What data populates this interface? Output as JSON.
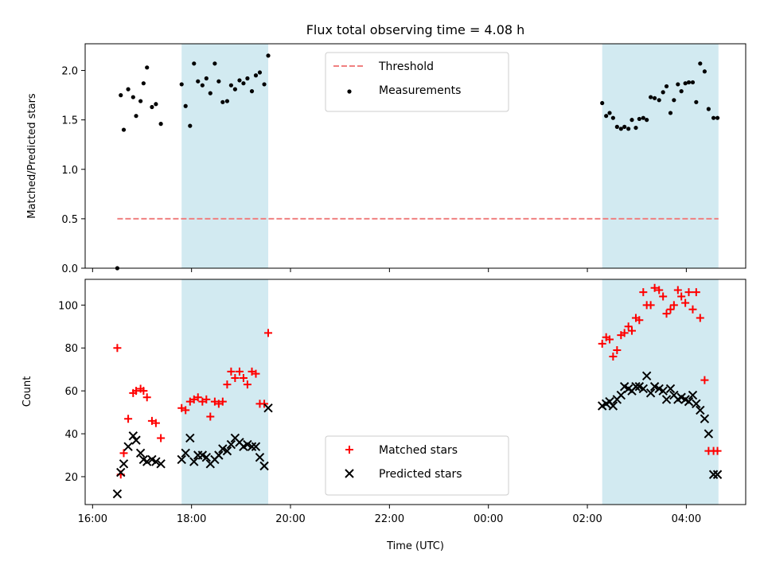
{
  "chart_data": [
    {
      "type": "scatter",
      "title": "Flux total observing time = 4.08 h",
      "xlabel": "",
      "ylabel": "Matched/Predicted stars",
      "x_unit": "hours_since_16:00_UTC",
      "xlim": [
        -0.15,
        13.2
      ],
      "ylim": [
        0,
        2.27
      ],
      "yticks": [
        0.0,
        0.5,
        1.0,
        1.5,
        2.0
      ],
      "ytick_labels": [
        "0.0",
        "0.5",
        "1.0",
        "1.5",
        "2.0"
      ],
      "shaded_intervals": [
        [
          1.8,
          3.55
        ],
        [
          10.3,
          12.65
        ]
      ],
      "shade_color": "#add8e6",
      "legend_position": "upper center",
      "threshold": {
        "name": "Threshold",
        "value": 0.5,
        "x_range": [
          0.5,
          12.65
        ],
        "color": "#f08080"
      },
      "series": [
        {
          "name": "Measurements",
          "color": "#000000",
          "x": [
            0.5,
            0.57,
            0.63,
            0.72,
            0.82,
            0.88,
            0.97,
            1.03,
            1.1,
            1.2,
            1.28,
            1.38,
            1.8,
            1.88,
            1.97,
            2.05,
            2.13,
            2.22,
            2.3,
            2.38,
            2.47,
            2.55,
            2.63,
            2.72,
            2.8,
            2.88,
            2.97,
            3.05,
            3.13,
            3.22,
            3.3,
            3.38,
            3.47,
            3.55,
            10.3,
            10.38,
            10.45,
            10.52,
            10.6,
            10.68,
            10.75,
            10.83,
            10.9,
            10.98,
            11.05,
            11.13,
            11.2,
            11.28,
            11.36,
            11.45,
            11.53,
            11.6,
            11.68,
            11.75,
            11.83,
            11.9,
            11.98,
            12.05,
            12.13,
            12.2,
            12.28,
            12.37,
            12.45,
            12.55,
            12.63
          ],
          "y": [
            0.0,
            1.75,
            1.4,
            1.81,
            1.73,
            1.54,
            1.69,
            1.87,
            2.03,
            1.63,
            1.66,
            1.46,
            1.86,
            1.64,
            1.44,
            2.07,
            1.89,
            1.85,
            1.92,
            1.77,
            2.07,
            1.89,
            1.68,
            1.69,
            1.85,
            1.81,
            1.9,
            1.87,
            1.92,
            1.79,
            1.95,
            1.98,
            1.86,
            2.15,
            1.67,
            1.54,
            1.57,
            1.52,
            1.43,
            1.41,
            1.43,
            1.41,
            1.5,
            1.42,
            1.51,
            1.52,
            1.5,
            1.73,
            1.72,
            1.7,
            1.78,
            1.84,
            1.57,
            1.7,
            1.86,
            1.79,
            1.87,
            1.88,
            1.88,
            1.68,
            2.07,
            1.99,
            1.61,
            1.52,
            1.52
          ]
        }
      ]
    },
    {
      "type": "scatter",
      "title": "",
      "xlabel": "Time (UTC)",
      "ylabel": "Count",
      "x_unit": "hours_since_16:00_UTC",
      "xlim": [
        -0.15,
        13.2
      ],
      "ylim": [
        7,
        112
      ],
      "yticks": [
        20,
        40,
        60,
        80,
        100
      ],
      "ytick_labels": [
        "20",
        "40",
        "60",
        "80",
        "100"
      ],
      "xticks": [
        0,
        2,
        4,
        6,
        8,
        10,
        12
      ],
      "xtick_labels": [
        "16:00",
        "18:00",
        "20:00",
        "22:00",
        "00:00",
        "02:00",
        "04:00"
      ],
      "shaded_intervals": [
        [
          1.8,
          3.55
        ],
        [
          10.3,
          12.65
        ]
      ],
      "shade_color": "#add8e6",
      "legend_position": "lower center",
      "series": [
        {
          "name": "Matched stars",
          "marker": "+",
          "color": "#ff0000",
          "x": [
            0.5,
            0.57,
            0.63,
            0.72,
            0.82,
            0.88,
            0.97,
            1.03,
            1.1,
            1.2,
            1.28,
            1.38,
            1.8,
            1.88,
            1.97,
            2.05,
            2.13,
            2.22,
            2.3,
            2.38,
            2.47,
            2.55,
            2.63,
            2.72,
            2.8,
            2.88,
            2.97,
            3.05,
            3.13,
            3.22,
            3.3,
            3.38,
            3.47,
            3.55,
            10.3,
            10.38,
            10.45,
            10.52,
            10.6,
            10.68,
            10.75,
            10.83,
            10.9,
            10.98,
            11.05,
            11.13,
            11.2,
            11.28,
            11.36,
            11.45,
            11.53,
            11.6,
            11.68,
            11.75,
            11.83,
            11.9,
            11.98,
            12.05,
            12.13,
            12.2,
            12.28,
            12.37,
            12.45,
            12.55,
            12.63
          ],
          "y": [
            80,
            21,
            31,
            47,
            59,
            60,
            61,
            60,
            57,
            46,
            45,
            38,
            52,
            51,
            55,
            56,
            57,
            55,
            56,
            48,
            55,
            54,
            55,
            63,
            69,
            66,
            69,
            66,
            63,
            69,
            68,
            54,
            54,
            87,
            82,
            85,
            84,
            76,
            79,
            86,
            87,
            90,
            88,
            94,
            93,
            106,
            100,
            100,
            108,
            107,
            104,
            96,
            98,
            100,
            107,
            104,
            101,
            106,
            98,
            106,
            94,
            65,
            32,
            32,
            32
          ],
          "y_note": ""
        },
        {
          "name": "Predicted stars",
          "marker": "x",
          "color": "#000000",
          "x": [
            0.5,
            0.57,
            0.63,
            0.72,
            0.82,
            0.88,
            0.97,
            1.03,
            1.1,
            1.2,
            1.28,
            1.38,
            1.8,
            1.88,
            1.97,
            2.05,
            2.13,
            2.22,
            2.3,
            2.38,
            2.47,
            2.55,
            2.63,
            2.72,
            2.8,
            2.88,
            2.97,
            3.05,
            3.13,
            3.22,
            3.3,
            3.38,
            3.47,
            3.55,
            10.3,
            10.38,
            10.45,
            10.52,
            10.6,
            10.68,
            10.75,
            10.83,
            10.9,
            10.98,
            11.05,
            11.13,
            11.2,
            11.28,
            11.36,
            11.45,
            11.53,
            11.6,
            11.68,
            11.75,
            11.83,
            11.9,
            11.98,
            12.05,
            12.13,
            12.2,
            12.28,
            12.37,
            12.45,
            12.55,
            12.63
          ],
          "y": [
            12,
            22,
            26,
            34,
            39,
            37,
            31,
            28,
            27,
            28,
            27,
            26,
            28,
            31,
            38,
            27,
            30,
            30,
            29,
            26,
            28,
            30,
            33,
            32,
            35,
            38,
            36,
            34,
            35,
            34,
            34,
            29,
            25,
            52,
            53,
            54,
            55,
            53,
            56,
            58,
            62,
            61,
            60,
            62,
            62,
            61,
            67,
            59,
            62,
            61,
            60,
            56,
            61,
            58,
            56,
            57,
            56,
            55,
            58,
            54,
            51,
            47,
            40,
            21,
            21
          ]
        }
      ]
    }
  ]
}
